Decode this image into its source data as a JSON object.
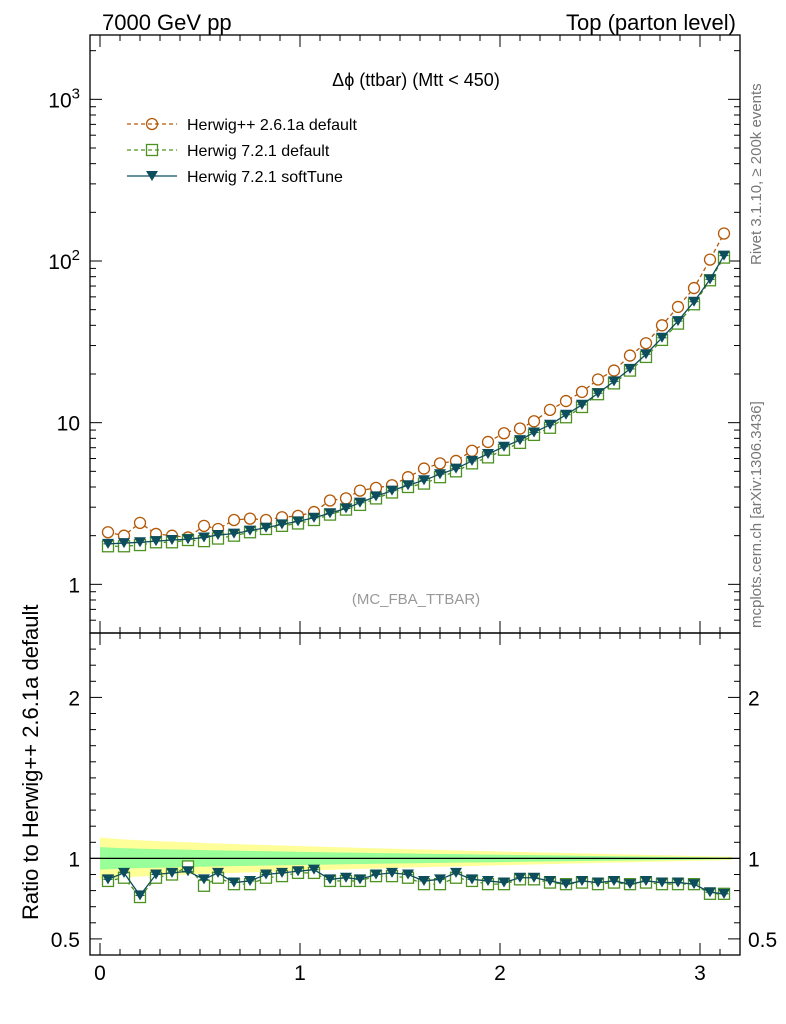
{
  "header": {
    "left": "7000 GeV pp",
    "right": "Top (parton level)"
  },
  "side_labels": {
    "rivet": "Rivet 3.1.10, ≥ 200k events",
    "mcplots": "mcplots.cern.ch [arXiv:1306.3436]"
  },
  "analysis_tag": "(MC_FBA_TTBAR)",
  "plot_title": "Δϕ (ttbar) (Mtt < 450)",
  "ratio_ylabel": "Ratio to Herwig++ 2.6.1a default",
  "chart_data": [
    {
      "type": "line",
      "yscale": "log",
      "xlim": [
        -0.05,
        3.2
      ],
      "ylim": [
        0.5,
        2500
      ],
      "y_ticks": [
        "1",
        "10",
        "10^2",
        "10^3"
      ],
      "legend_position": "top-left",
      "title": "Δϕ (ttbar) (Mtt < 450)",
      "x": [
        0.04,
        0.12,
        0.2,
        0.28,
        0.36,
        0.44,
        0.52,
        0.59,
        0.67,
        0.75,
        0.83,
        0.91,
        0.99,
        1.07,
        1.15,
        1.23,
        1.3,
        1.38,
        1.46,
        1.54,
        1.62,
        1.7,
        1.78,
        1.86,
        1.94,
        2.02,
        2.1,
        2.17,
        2.25,
        2.33,
        2.41,
        2.49,
        2.57,
        2.65,
        2.73,
        2.81,
        2.89,
        2.97,
        3.05,
        3.12
      ],
      "series": [
        {
          "name": "Herwig++ 2.6.1a default",
          "color": "#b35806",
          "marker": "open-circle",
          "dashed": true,
          "values": [
            2.1,
            2.0,
            2.4,
            2.05,
            2.0,
            1.95,
            2.3,
            2.2,
            2.5,
            2.55,
            2.5,
            2.6,
            2.65,
            2.8,
            3.3,
            3.4,
            3.8,
            3.95,
            4.1,
            4.6,
            5.2,
            5.6,
            5.8,
            6.7,
            7.6,
            8.6,
            9.2,
            10.2,
            12.0,
            13.6,
            15.5,
            18.5,
            21.0,
            26.0,
            31.0,
            40.0,
            52.0,
            68.0,
            102.0,
            148.0
          ]
        },
        {
          "name": "Herwig 7.2.1 default",
          "color": "#4d9221",
          "marker": "open-square",
          "dashed": true,
          "values": [
            1.72,
            1.72,
            1.75,
            1.82,
            1.82,
            1.88,
            1.85,
            1.92,
            2.0,
            2.1,
            2.2,
            2.3,
            2.38,
            2.5,
            2.7,
            2.9,
            3.1,
            3.4,
            3.7,
            4.0,
            4.2,
            4.6,
            5.0,
            5.6,
            6.1,
            6.8,
            7.5,
            8.4,
            9.3,
            10.8,
            12.5,
            15.0,
            17.5,
            21.0,
            25.5,
            32.5,
            41.0,
            54.0,
            76.0,
            105.0
          ]
        },
        {
          "name": "Herwig 7.2.1 softTune",
          "color": "#0e4d5c",
          "marker": "filled-triangle-down",
          "dashed": false,
          "values": [
            1.78,
            1.8,
            1.82,
            1.85,
            1.88,
            1.9,
            1.95,
            2.02,
            2.06,
            2.15,
            2.24,
            2.35,
            2.45,
            2.58,
            2.75,
            2.95,
            3.2,
            3.5,
            3.8,
            4.1,
            4.4,
            4.8,
            5.2,
            5.8,
            6.4,
            7.1,
            7.8,
            8.7,
            9.7,
            11.2,
            12.9,
            15.2,
            18.0,
            21.5,
            26.5,
            33.5,
            42.5,
            56.0,
            77.0,
            108.0
          ]
        }
      ]
    },
    {
      "type": "line",
      "ylabel": "Ratio to Herwig++ 2.6.1a default",
      "xlim": [
        -0.05,
        3.2
      ],
      "ylim": [
        0.4,
        2.4
      ],
      "x_ticks": [
        "0",
        "1",
        "2",
        "3"
      ],
      "y_ticks": [
        "0.5",
        "1",
        "2"
      ],
      "x": [
        0.04,
        0.12,
        0.2,
        0.28,
        0.36,
        0.44,
        0.52,
        0.59,
        0.67,
        0.75,
        0.83,
        0.91,
        0.99,
        1.07,
        1.15,
        1.23,
        1.3,
        1.38,
        1.46,
        1.54,
        1.62,
        1.7,
        1.78,
        1.86,
        1.94,
        2.02,
        2.1,
        2.17,
        2.25,
        2.33,
        2.41,
        2.49,
        2.57,
        2.65,
        2.73,
        2.81,
        2.89,
        2.97,
        3.05,
        3.12
      ],
      "series": [
        {
          "name": "Herwig 7.2.1 default",
          "color": "#4d9221",
          "marker": "open-square",
          "dashed": true,
          "values": [
            0.86,
            0.88,
            0.76,
            0.88,
            0.9,
            0.95,
            0.83,
            0.88,
            0.84,
            0.84,
            0.88,
            0.89,
            0.91,
            0.91,
            0.86,
            0.86,
            0.86,
            0.89,
            0.89,
            0.88,
            0.84,
            0.84,
            0.88,
            0.86,
            0.84,
            0.84,
            0.87,
            0.87,
            0.85,
            0.84,
            0.85,
            0.84,
            0.85,
            0.84,
            0.85,
            0.84,
            0.84,
            0.84,
            0.78,
            0.78
          ]
        },
        {
          "name": "Herwig 7.2.1 softTune",
          "color": "#0e4d5c",
          "marker": "filled-triangle-down",
          "dashed": false,
          "values": [
            0.87,
            0.91,
            0.77,
            0.9,
            0.91,
            0.92,
            0.87,
            0.91,
            0.85,
            0.86,
            0.9,
            0.91,
            0.92,
            0.93,
            0.87,
            0.88,
            0.87,
            0.9,
            0.91,
            0.9,
            0.86,
            0.87,
            0.91,
            0.87,
            0.86,
            0.85,
            0.88,
            0.88,
            0.86,
            0.84,
            0.86,
            0.85,
            0.86,
            0.84,
            0.86,
            0.85,
            0.85,
            0.84,
            0.79,
            0.78
          ]
        }
      ],
      "bands": [
        {
          "color": "#ffff99",
          "halfwidth_start": 0.13,
          "halfwidth_end": 0.01
        },
        {
          "color": "#99ff99",
          "halfwidth_start": 0.07,
          "halfwidth_end": 0.005
        }
      ]
    }
  ]
}
